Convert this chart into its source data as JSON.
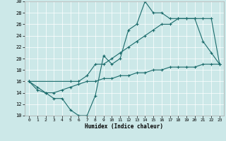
{
  "xlabel": "Humidex (Indice chaleur)",
  "ylabel": "",
  "xlim": [
    -0.5,
    23.5
  ],
  "ylim": [
    10,
    30
  ],
  "xticks": [
    0,
    1,
    2,
    3,
    4,
    5,
    6,
    7,
    8,
    9,
    10,
    11,
    12,
    13,
    14,
    15,
    16,
    17,
    18,
    19,
    20,
    21,
    22,
    23
  ],
  "yticks": [
    10,
    12,
    14,
    16,
    18,
    20,
    22,
    24,
    26,
    28,
    30
  ],
  "bg_color": "#cce8e8",
  "line_color": "#1a6b6b",
  "grid_color": "#ffffff",
  "line1_x": [
    0,
    1,
    2,
    3,
    4,
    5,
    6,
    7,
    8,
    9,
    10,
    11,
    12,
    13,
    14,
    15,
    16,
    17,
    18,
    19,
    20,
    21,
    22,
    23
  ],
  "line1_y": [
    16,
    15,
    14,
    13,
    13,
    11,
    10,
    10,
    13.5,
    20.5,
    19,
    20,
    25,
    26,
    30,
    28,
    28,
    27,
    27,
    27,
    27,
    23,
    21,
    19
  ],
  "line2_x": [
    0,
    5,
    6,
    7,
    8,
    9,
    10,
    11,
    12,
    13,
    14,
    15,
    16,
    17,
    18,
    19,
    20,
    21,
    22,
    23
  ],
  "line2_y": [
    16,
    16,
    16,
    17,
    19,
    19,
    20,
    21,
    22,
    23,
    24,
    25,
    26,
    26,
    27,
    27,
    27,
    27,
    27,
    19
  ],
  "line3_x": [
    0,
    1,
    2,
    3,
    4,
    5,
    6,
    7,
    8,
    9,
    10,
    11,
    12,
    13,
    14,
    15,
    16,
    17,
    18,
    19,
    20,
    21,
    22,
    23
  ],
  "line3_y": [
    16,
    14.5,
    14,
    14,
    14.5,
    15,
    15.5,
    16,
    16,
    16.5,
    16.5,
    17,
    17,
    17.5,
    17.5,
    18,
    18,
    18.5,
    18.5,
    18.5,
    18.5,
    19,
    19,
    19
  ]
}
